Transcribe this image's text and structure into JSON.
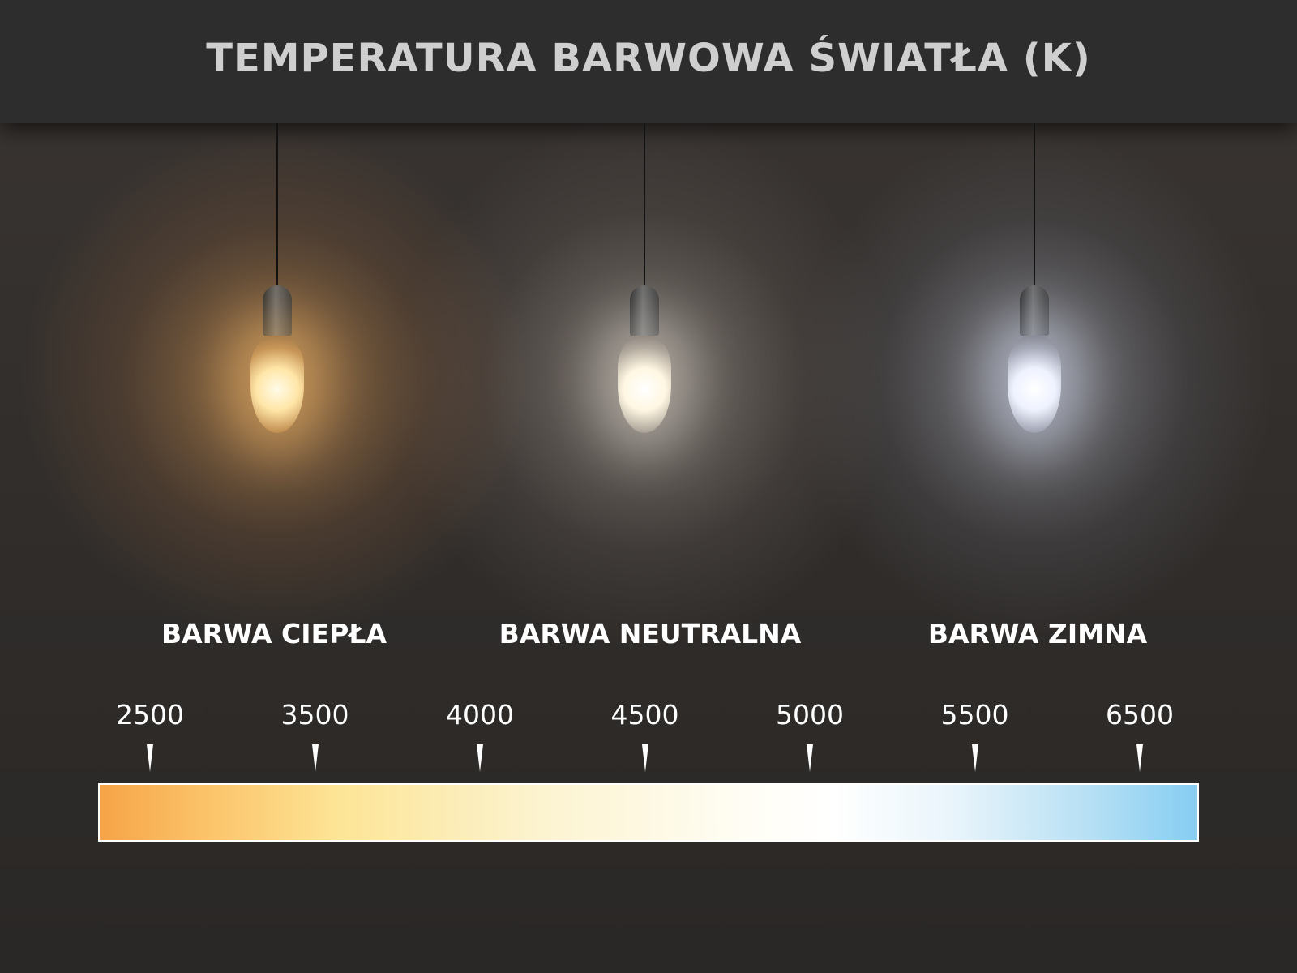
{
  "title": "TEMPERATURA BARWOWA ŚWIATŁA (K)",
  "categories": [
    {
      "label": "BARWA CIEPŁA",
      "glow_color": "#f6b46a"
    },
    {
      "label": "BARWA NEUTRALNA",
      "glow_color": "#fff6e0"
    },
    {
      "label": "BARWA ZIMNA",
      "glow_color": "#e6ecff"
    }
  ],
  "scale": {
    "ticks": [
      "2500",
      "3500",
      "4000",
      "4500",
      "5000",
      "5500",
      "6500"
    ],
    "gradient_colors": [
      "#f6a447",
      "#fde597",
      "#ffffff",
      "#86cdf2"
    ]
  }
}
